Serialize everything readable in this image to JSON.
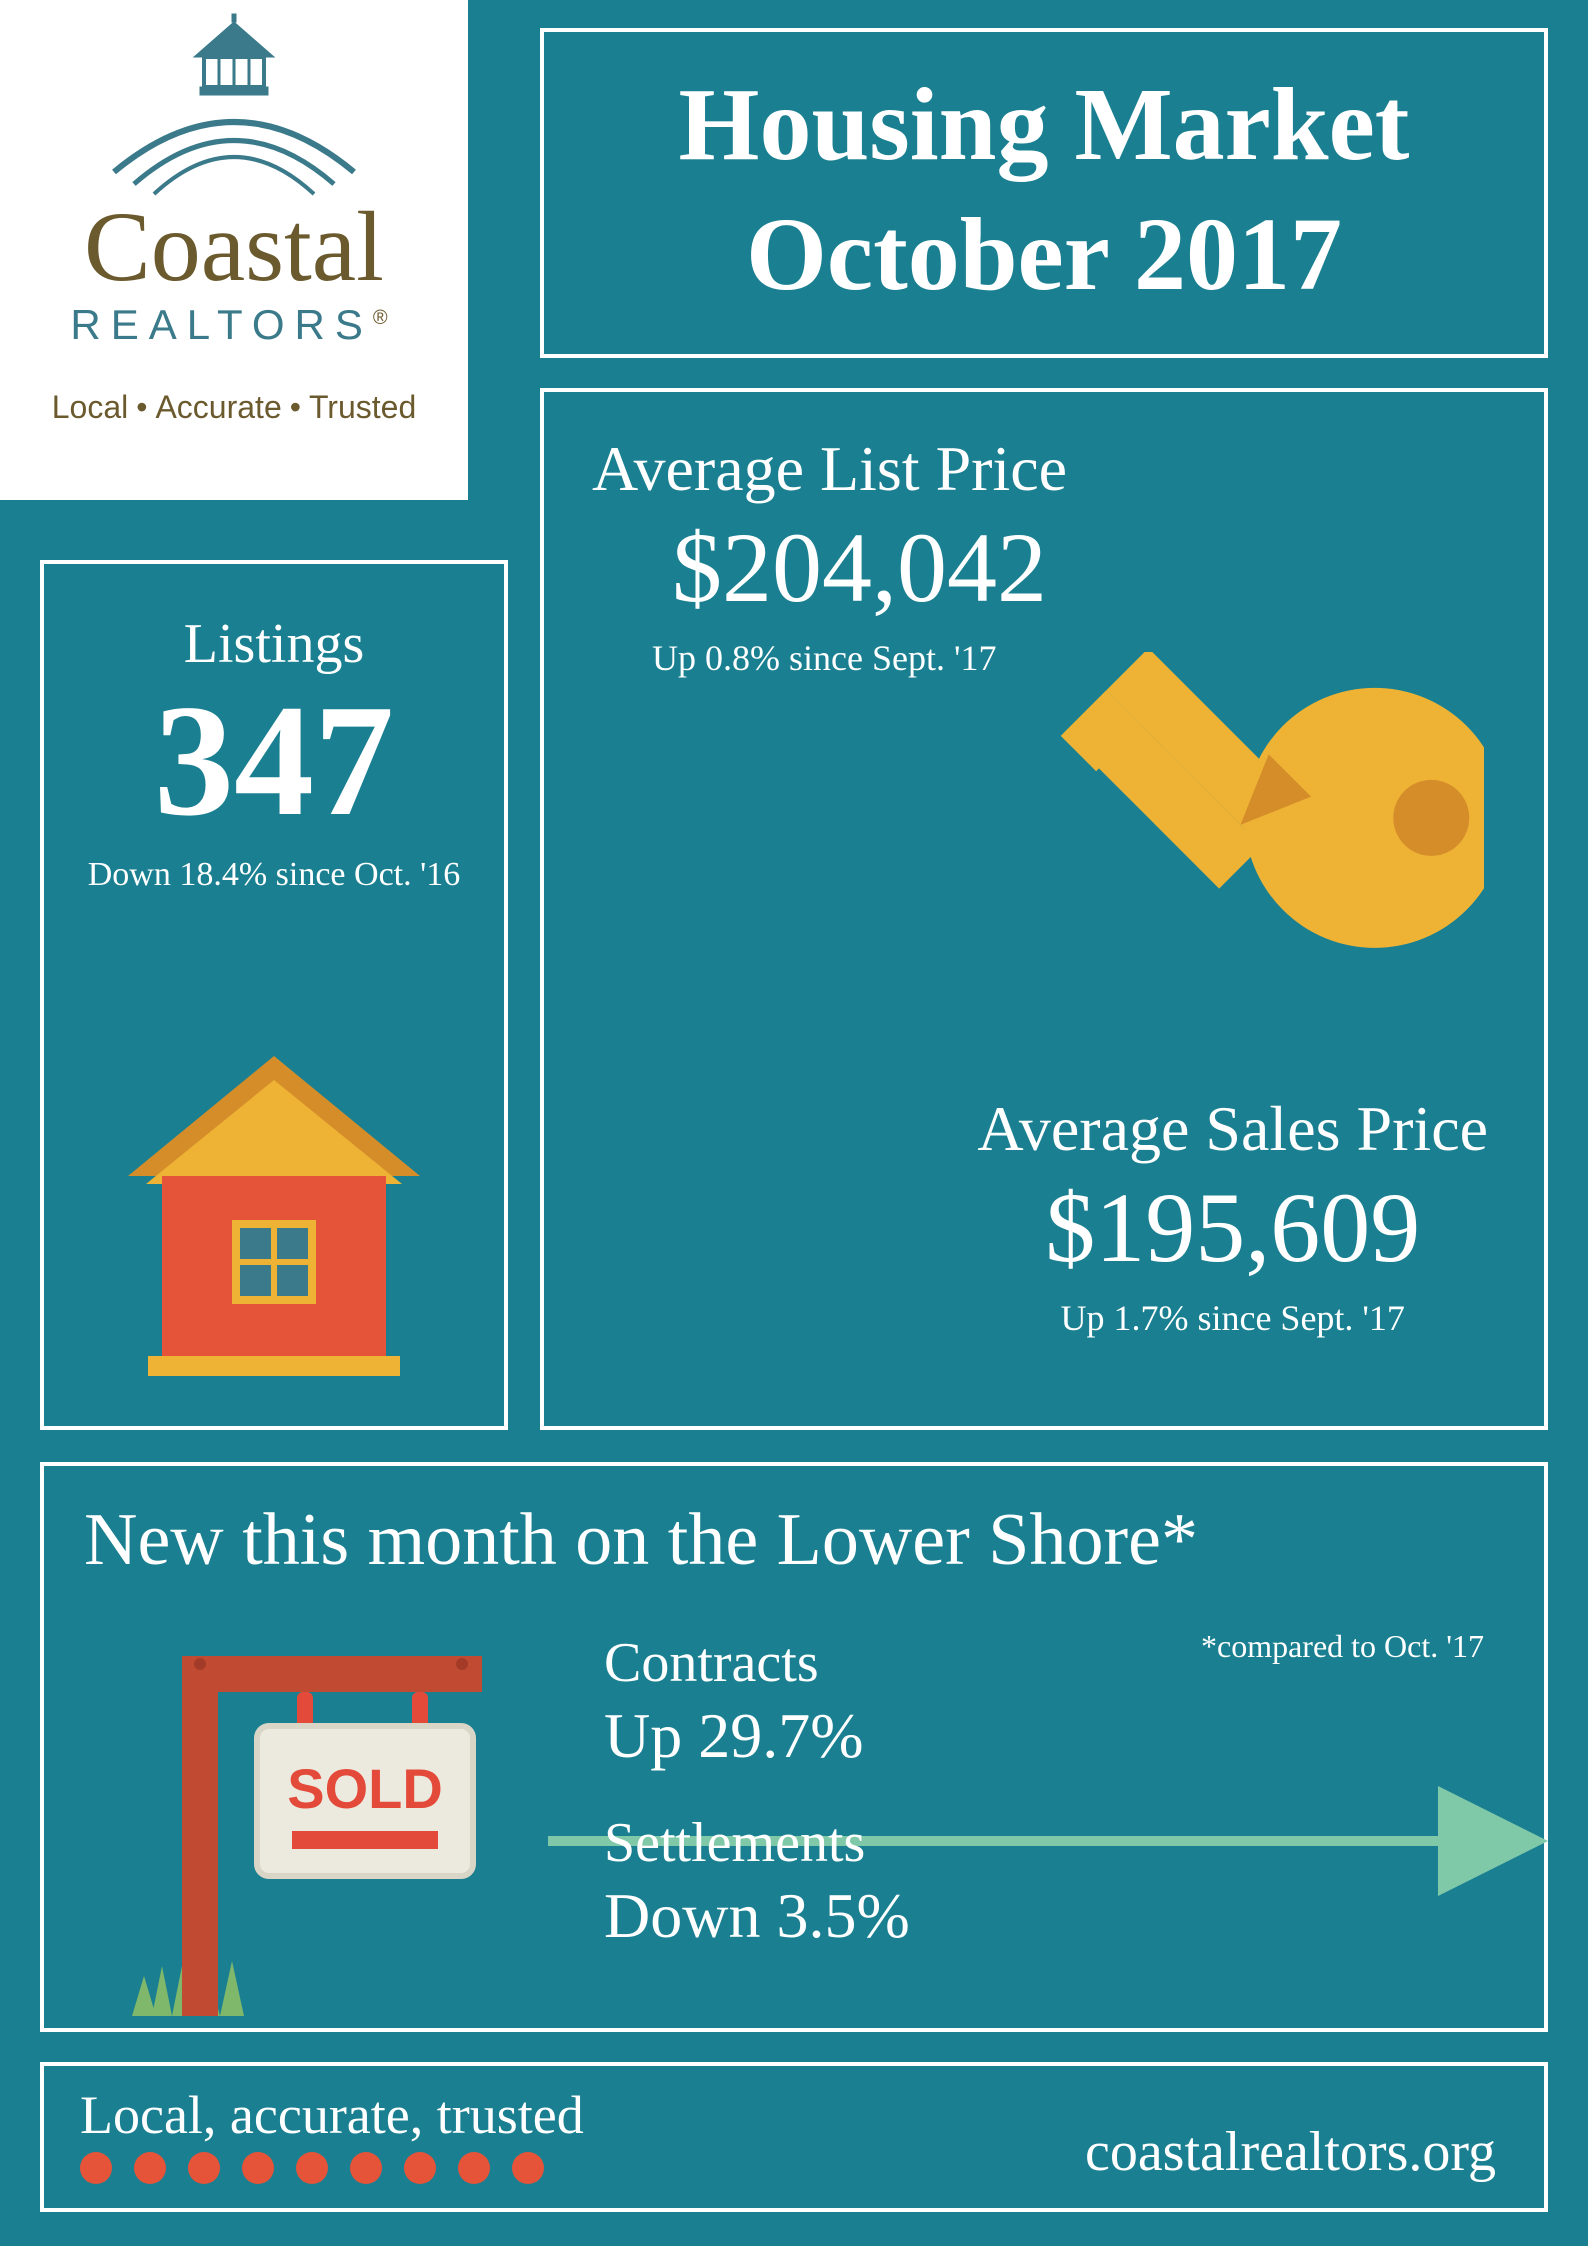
{
  "colors": {
    "bg_teal": "#1a8091",
    "white": "#ffffff",
    "brand_olive": "#6b5a2e",
    "brand_teal_text": "#3a7a8a",
    "house_red": "#e55338",
    "house_roof_yellow": "#eeb335",
    "house_roof_dark": "#d58d2a",
    "house_window": "#3a7a8a",
    "key_yellow": "#eeb335",
    "key_shadow": "#d58d2a",
    "sign_post": "#c14a33",
    "sign_post_dark": "#a33b28",
    "sold_red": "#e44a3a",
    "grass_green": "#7fb86a",
    "arrow_green": "#7fc9a8",
    "dot_orange": "#e55338"
  },
  "logo": {
    "script": "Coastal",
    "realtors": "REALTORS",
    "reg": "®",
    "tagline_1": "Local",
    "tagline_2": "Accurate",
    "tagline_3": "Trusted"
  },
  "title": {
    "line1": "Housing Market",
    "line2": "October 2017"
  },
  "listings": {
    "label": "Listings",
    "value": "347",
    "change": "Down 18.4% since Oct. '16"
  },
  "list_price": {
    "label": "Average List Price",
    "value": "$204,042",
    "change": "Up 0.8% since Sept. '17"
  },
  "sales_price": {
    "label": "Average Sales Price",
    "value": "$195,609",
    "change": "Up 1.7% since Sept. '17"
  },
  "lower_shore": {
    "title": "New this month on the Lower Shore*",
    "note": "*compared to Oct. '17",
    "contracts_label": "Contracts",
    "contracts_value": "Up 29.7%",
    "settlements_label": "Settlements",
    "settlements_value": "Down 3.5%",
    "sold_text": "SOLD"
  },
  "footer": {
    "script": "Local, accurate, trusted",
    "url": "coastalrealtors.org",
    "dot_count": 9
  }
}
